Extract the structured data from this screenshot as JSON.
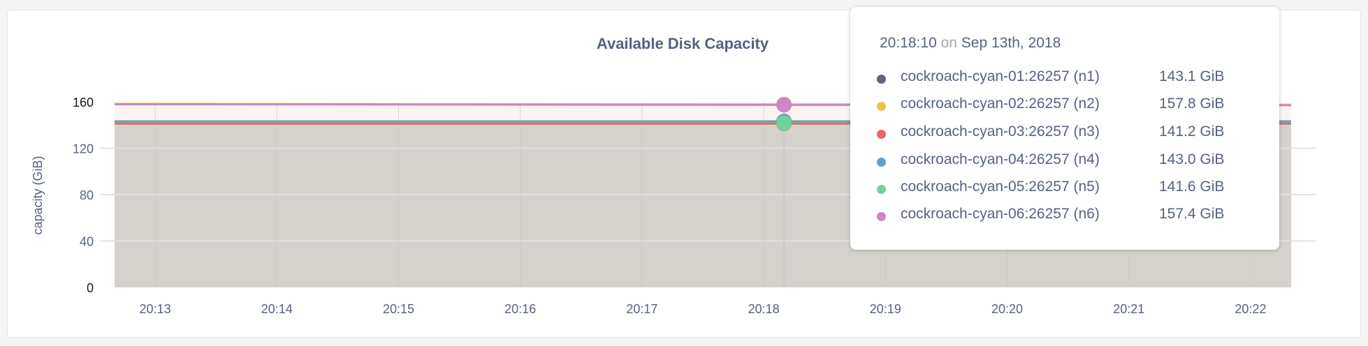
{
  "chart_data": {
    "type": "area",
    "title": "Available Disk Capacity",
    "ylabel": "capacity (GiB)",
    "xlabel": "",
    "ylim": [
      0,
      160
    ],
    "yticks": [
      "0",
      "40",
      "80",
      "120",
      "160"
    ],
    "ytick_values": [
      0,
      40,
      80,
      120,
      160
    ],
    "xlim": [
      "20:12:40",
      "20:22:20"
    ],
    "xticks": [
      "20:13",
      "20:14",
      "20:15",
      "20:16",
      "20:17",
      "20:18",
      "20:19",
      "20:20",
      "20:21",
      "20:22"
    ],
    "grid": true,
    "x": [
      "20:12:40",
      "20:14:00",
      "20:16:00",
      "20:18:10",
      "20:20:00",
      "20:22:20"
    ],
    "series": [
      {
        "name": "cockroach-cyan-01:26257 (n1)",
        "color": "#5c6580",
        "values": [
          143.1,
          143.1,
          143.1,
          143.1,
          143.1,
          143.1
        ]
      },
      {
        "name": "cockroach-cyan-02:26257 (n2)",
        "color": "#eec049",
        "values": [
          158.3,
          158.2,
          158.0,
          157.8,
          157.7,
          157.5
        ]
      },
      {
        "name": "cockroach-cyan-03:26257 (n3)",
        "color": "#e5686a",
        "values": [
          141.2,
          141.2,
          141.2,
          141.2,
          141.2,
          141.2
        ]
      },
      {
        "name": "cockroach-cyan-04:26257 (n4)",
        "color": "#5c9fd2",
        "values": [
          143.0,
          143.0,
          143.0,
          143.0,
          143.0,
          143.0
        ]
      },
      {
        "name": "cockroach-cyan-05:26257 (n5)",
        "color": "#6fd39a",
        "values": [
          141.6,
          141.6,
          141.6,
          141.6,
          141.6,
          141.6
        ]
      },
      {
        "name": "cockroach-cyan-06:26257 (n6)",
        "color": "#cf86c4",
        "values": [
          157.9,
          157.8,
          157.6,
          157.4,
          157.3,
          157.1
        ]
      }
    ],
    "hover_x": "20:18:10"
  },
  "tooltip": {
    "time": "20:18:10",
    "on": "on",
    "date": "Sep 13th, 2018",
    "rows": [
      {
        "name": "cockroach-cyan-01:26257 (n1)",
        "value": "143.1 GiB",
        "color": "#5c6580"
      },
      {
        "name": "cockroach-cyan-02:26257 (n2)",
        "value": "157.8 GiB",
        "color": "#eec049"
      },
      {
        "name": "cockroach-cyan-03:26257 (n3)",
        "value": "141.2 GiB",
        "color": "#e5686a"
      },
      {
        "name": "cockroach-cyan-04:26257 (n4)",
        "value": "143.0 GiB",
        "color": "#5c9fd2"
      },
      {
        "name": "cockroach-cyan-05:26257 (n5)",
        "value": "141.6 GiB",
        "color": "#6fd39a"
      },
      {
        "name": "cockroach-cyan-06:26257 (n6)",
        "value": "157.4 GiB",
        "color": "#cf86c4"
      }
    ]
  }
}
